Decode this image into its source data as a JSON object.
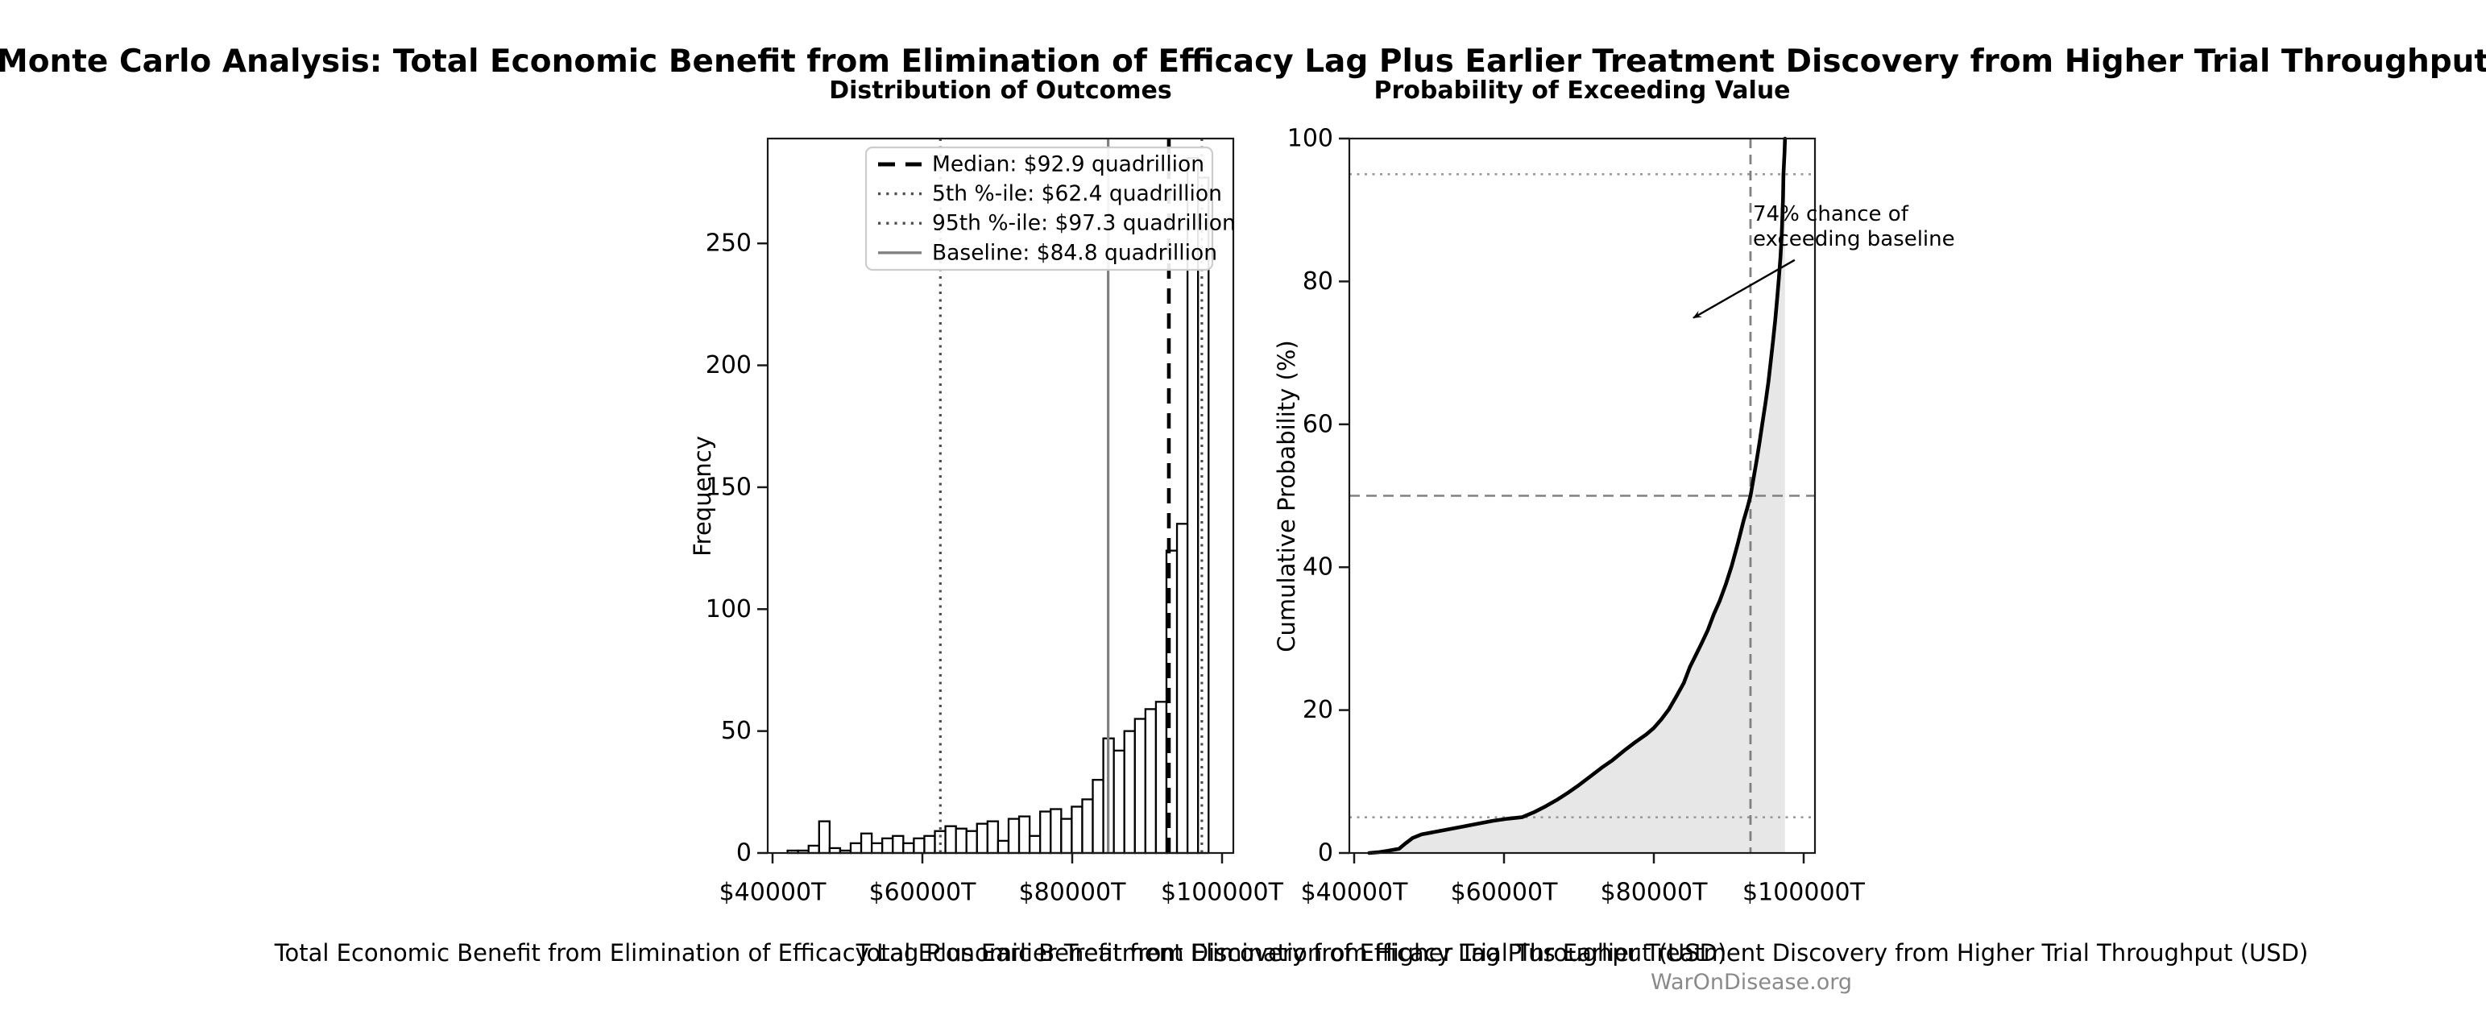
{
  "figure": {
    "title": "Monte Carlo Analysis: Total Economic Benefit from Elimination of Efficacy Lag Plus Earlier Treatment Discovery from Higher Trial Throughput",
    "watermark": "WarOnDisease.org",
    "colors": {
      "background": "#ffffff",
      "bar_fill": "#ffffff",
      "bar_edge": "#000000",
      "median_line": "#000000",
      "percentile_line": "#4d4d4d",
      "baseline_line": "#808080",
      "cdf_line": "#000000",
      "cdf_fill": "#e7e7e7",
      "reference_gray": "#999999",
      "legend_border": "#cccccc",
      "watermark_gray": "#8a8a8a"
    }
  },
  "left_chart": {
    "title": "Distribution of Outcomes",
    "xlabel": "Total Economic Benefit from Elimination of Efficacy Lag Plus Earlier Treatment Discovery from Higher Trial Throughput (USD)",
    "ylabel": "Frequency"
  },
  "right_chart": {
    "title": "Probability of Exceeding Value",
    "xlabel": "Total Economic Benefit from Elimination of Efficacy Lag Plus Earlier Treatment Discovery from Higher Trial Throughput (USD)",
    "ylabel": "Cumulative Probability (%)",
    "annotation_text": "74% chance of\nexceeding baseline"
  },
  "chart_data": [
    {
      "type": "bar",
      "subtype": "histogram",
      "title": "Distribution of Outcomes",
      "xlabel": "Total Economic Benefit from Elimination of Efficacy Lag Plus Earlier Treatment Discovery from Higher Trial Throughput (USD)",
      "ylabel": "Frequency",
      "units": "trillions USD (T)",
      "bin_start": 42000,
      "bin_width": 1405,
      "values": [
        1,
        1,
        3,
        13,
        2,
        1,
        4,
        8,
        4,
        6,
        7,
        4,
        6,
        7,
        9,
        11,
        10,
        9,
        12,
        13,
        5,
        14,
        15,
        7,
        17,
        18,
        14,
        19,
        22,
        30,
        47,
        42,
        50,
        55,
        59,
        62,
        124,
        135,
        285,
        277
      ],
      "xticks": [
        {
          "value": 40000,
          "label": "$40000T"
        },
        {
          "value": 60000,
          "label": "$60000T"
        },
        {
          "value": 80000,
          "label": "$80000T"
        },
        {
          "value": 100000,
          "label": "$100000T"
        }
      ],
      "yticks": [
        0,
        50,
        100,
        150,
        200,
        250
      ],
      "xlim": [
        39350,
        102150
      ],
      "ylim": [
        0,
        293
      ],
      "grid": false,
      "vlines": [
        {
          "id": "median",
          "value": 92900,
          "label": "Median: $92.9 quadrillion",
          "style": "dashed",
          "color": "#000000",
          "width": 4.6
        },
        {
          "id": "p5",
          "value": 62400,
          "label": "5th %-ile: $62.4 quadrillion",
          "style": "dotted",
          "color": "#4d4d4d",
          "width": 3.2
        },
        {
          "id": "p95",
          "value": 97300,
          "label": "95th %-ile: $97.3 quadrillion",
          "style": "dotted",
          "color": "#4d4d4d",
          "width": 3.2
        },
        {
          "id": "baseline",
          "value": 84800,
          "label": "Baseline: $84.8 quadrillion",
          "style": "solid",
          "color": "#808080",
          "width": 3.2
        }
      ],
      "legend_position": "upper right"
    },
    {
      "type": "line",
      "subtype": "empirical-cdf",
      "title": "Probability of Exceeding Value",
      "xlabel": "Total Economic Benefit from Elimination of Efficacy Lag Plus Earlier Treatment Discovery from Higher Trial Throughput (USD)",
      "ylabel": "Cumulative Probability (%)",
      "xticks": [
        {
          "value": 40000,
          "label": "$40000T"
        },
        {
          "value": 60000,
          "label": "$60000T"
        },
        {
          "value": 80000,
          "label": "$80000T"
        },
        {
          "value": 100000,
          "label": "$100000T"
        }
      ],
      "yticks": [
        0,
        20,
        40,
        60,
        80,
        100
      ],
      "xlim": [
        39350,
        102150
      ],
      "ylim": [
        0,
        100
      ],
      "grid": false,
      "fill_under": true,
      "points": [
        [
          42000,
          0.0
        ],
        [
          43200,
          0.1
        ],
        [
          44500,
          0.3
        ],
        [
          46000,
          0.6
        ],
        [
          46800,
          1.3
        ],
        [
          47800,
          2.1
        ],
        [
          49000,
          2.6
        ],
        [
          50500,
          2.9
        ],
        [
          52500,
          3.3
        ],
        [
          54500,
          3.7
        ],
        [
          56500,
          4.1
        ],
        [
          58500,
          4.5
        ],
        [
          60500,
          4.8
        ],
        [
          62400,
          5.0
        ],
        [
          64000,
          5.7
        ],
        [
          65500,
          6.5
        ],
        [
          67000,
          7.4
        ],
        [
          68500,
          8.4
        ],
        [
          70000,
          9.5
        ],
        [
          71500,
          10.7
        ],
        [
          73000,
          11.9
        ],
        [
          74500,
          13.0
        ],
        [
          76000,
          14.3
        ],
        [
          77500,
          15.5
        ],
        [
          79000,
          16.6
        ],
        [
          80000,
          17.5
        ],
        [
          81000,
          18.7
        ],
        [
          82000,
          20.1
        ],
        [
          83000,
          21.9
        ],
        [
          84000,
          23.8
        ],
        [
          84800,
          26.0
        ],
        [
          85600,
          27.7
        ],
        [
          86400,
          29.4
        ],
        [
          87200,
          31.2
        ],
        [
          88000,
          33.4
        ],
        [
          88800,
          35.3
        ],
        [
          89600,
          37.6
        ],
        [
          90400,
          40.2
        ],
        [
          91200,
          43.3
        ],
        [
          92000,
          46.6
        ],
        [
          92500,
          48.4
        ],
        [
          92900,
          50.0
        ],
        [
          93300,
          52.4
        ],
        [
          93700,
          54.8
        ],
        [
          94100,
          57.4
        ],
        [
          94500,
          60.2
        ],
        [
          94900,
          63.0
        ],
        [
          95300,
          66.0
        ],
        [
          95600,
          68.8
        ],
        [
          95900,
          71.6
        ],
        [
          96200,
          74.6
        ],
        [
          96500,
          78.0
        ],
        [
          96700,
          80.6
        ],
        [
          96900,
          83.4
        ],
        [
          97050,
          86.2
        ],
        [
          97150,
          88.8
        ],
        [
          97250,
          91.8
        ],
        [
          97300,
          95.0
        ],
        [
          97380,
          96.6
        ],
        [
          97450,
          98.2
        ],
        [
          97500,
          100.0
        ]
      ],
      "hlines": [
        {
          "value": 50,
          "style": "dashed",
          "color": "#808080",
          "width": 2.4
        },
        {
          "value": 5,
          "style": "dotted",
          "color": "#999999",
          "width": 2.6
        },
        {
          "value": 95,
          "style": "dotted",
          "color": "#999999",
          "width": 2.6
        }
      ],
      "vlines": [
        {
          "id": "median",
          "value": 92900,
          "style": "dashed",
          "color": "#808080",
          "width": 2.8
        }
      ],
      "annotation": {
        "text": "74% chance of\nexceeding baseline",
        "text_xy": [
          92900,
          90
        ],
        "arrow_start": [
          98800,
          83.0
        ],
        "arrow_end": [
          85270,
          74.9
        ]
      }
    }
  ]
}
